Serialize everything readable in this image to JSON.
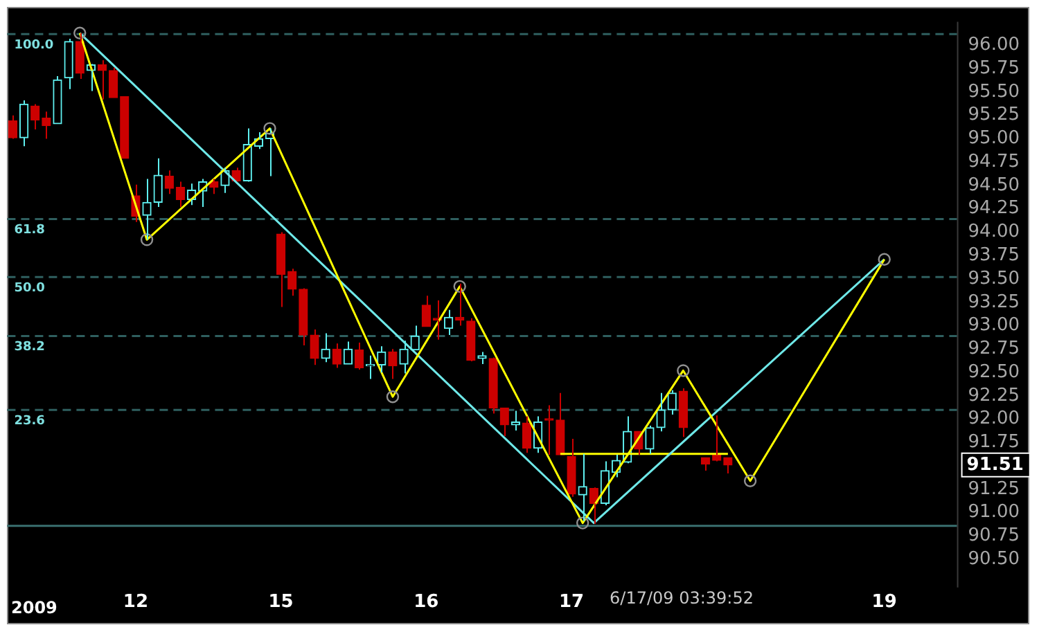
{
  "chart_data": {
    "type": "candlestick",
    "categories": [
      null,
      null,
      null,
      null,
      null,
      null,
      null,
      null,
      null,
      null,
      null,
      "12",
      null,
      null,
      null,
      null,
      null,
      null,
      null,
      null,
      null,
      null,
      null,
      null,
      "15",
      null,
      null,
      null,
      null,
      null,
      null,
      null,
      null,
      null,
      null,
      null,
      null,
      "16",
      null,
      null,
      null,
      null,
      null,
      null,
      null,
      null,
      null,
      null,
      null,
      null,
      "17",
      null,
      null,
      null,
      null,
      null,
      null,
      null,
      null,
      null,
      null,
      null,
      null,
      null,
      null,
      null,
      null,
      null,
      null,
      null,
      null,
      null,
      null,
      null,
      null,
      null,
      null,
      null,
      "19",
      null,
      null,
      null,
      null,
      null,
      null
    ],
    "ohlc": [
      [
        95.19,
        95.25,
        95.0,
        95.01
      ],
      [
        95.01,
        95.41,
        94.92,
        95.37
      ],
      [
        95.35,
        95.37,
        95.1,
        95.2
      ],
      [
        95.22,
        95.29,
        95.0,
        95.14
      ],
      [
        95.16,
        95.67,
        95.16,
        95.63
      ],
      [
        95.65,
        96.07,
        95.53,
        96.04
      ],
      [
        96.04,
        96.13,
        95.64,
        95.7
      ],
      [
        95.73,
        95.8,
        95.51,
        95.79
      ],
      [
        95.79,
        95.84,
        95.42,
        95.73
      ],
      [
        95.73,
        95.76,
        95.44,
        95.44
      ],
      [
        95.45,
        95.45,
        94.79,
        94.79
      ],
      [
        94.39,
        94.51,
        94.11,
        94.17
      ],
      [
        94.18,
        94.57,
        93.92,
        94.32
      ],
      [
        94.32,
        94.79,
        94.27,
        94.61
      ],
      [
        94.6,
        94.66,
        94.41,
        94.47
      ],
      [
        94.48,
        94.54,
        94.27,
        94.35
      ],
      [
        94.35,
        94.52,
        94.29,
        94.45
      ],
      [
        94.44,
        94.57,
        94.27,
        94.54
      ],
      [
        94.54,
        94.57,
        94.41,
        94.48
      ],
      [
        94.5,
        94.69,
        94.42,
        94.66
      ],
      [
        94.66,
        94.69,
        94.54,
        94.55
      ],
      [
        94.55,
        95.11,
        94.54,
        94.94
      ],
      [
        94.92,
        95.07,
        94.89,
        95.0
      ],
      [
        95.0,
        95.11,
        94.6,
        95.06
      ],
      [
        93.98,
        94.0,
        93.2,
        93.55
      ],
      [
        93.58,
        93.61,
        93.32,
        93.39
      ],
      [
        93.39,
        93.4,
        92.79,
        92.9
      ],
      [
        92.9,
        92.96,
        92.58,
        92.65
      ],
      [
        92.65,
        92.92,
        92.61,
        92.75
      ],
      [
        92.75,
        92.81,
        92.55,
        92.59
      ],
      [
        92.59,
        92.83,
        92.59,
        92.75
      ],
      [
        92.74,
        92.82,
        92.53,
        92.55
      ],
      [
        92.57,
        92.68,
        92.43,
        92.58
      ],
      [
        92.58,
        92.78,
        92.5,
        92.72
      ],
      [
        92.72,
        92.75,
        92.43,
        92.57
      ],
      [
        92.59,
        92.84,
        92.49,
        92.75
      ],
      [
        92.74,
        93.0,
        92.74,
        92.89
      ],
      [
        93.22,
        93.32,
        92.99,
        92.99
      ],
      [
        93.08,
        93.27,
        92.85,
        93.06
      ],
      [
        92.97,
        93.17,
        92.9,
        93.09
      ],
      [
        93.09,
        93.45,
        93.0,
        93.06
      ],
      [
        93.05,
        93.08,
        92.62,
        92.63
      ],
      [
        92.65,
        92.72,
        92.59,
        92.68
      ],
      [
        92.65,
        92.66,
        92.06,
        92.12
      ],
      [
        92.12,
        92.12,
        91.82,
        91.94
      ],
      [
        91.94,
        92.09,
        91.88,
        91.97
      ],
      [
        91.96,
        92.03,
        91.64,
        91.69
      ],
      [
        91.69,
        92.03,
        91.64,
        91.97
      ],
      [
        92.0,
        92.15,
        91.62,
        91.99
      ],
      [
        91.99,
        92.28,
        91.62,
        91.62
      ],
      [
        91.6,
        91.79,
        91.17,
        91.2
      ],
      [
        91.19,
        91.63,
        90.91,
        91.28
      ],
      [
        91.26,
        91.27,
        90.88,
        91.1
      ],
      [
        91.1,
        91.55,
        91.08,
        91.45
      ],
      [
        91.43,
        91.62,
        91.38,
        91.56
      ],
      [
        91.54,
        92.03,
        91.53,
        91.87
      ],
      [
        91.87,
        91.87,
        91.62,
        91.68
      ],
      [
        91.68,
        91.93,
        91.63,
        91.91
      ],
      [
        91.91,
        92.28,
        91.87,
        92.1
      ],
      [
        92.1,
        92.31,
        92.05,
        92.28
      ],
      [
        92.3,
        92.33,
        91.81,
        91.91
      ],
      null,
      [
        91.59,
        91.59,
        91.45,
        91.52
      ],
      [
        91.62,
        92.04,
        91.55,
        91.56
      ],
      [
        91.59,
        91.59,
        91.42,
        91.51
      ],
      null,
      null,
      null,
      null,
      null,
      null,
      null,
      null,
      null,
      null,
      null,
      null,
      null,
      null,
      null,
      null,
      null,
      null,
      null,
      null
    ],
    "series": [
      {
        "type": "line",
        "color": "#ffff00",
        "marker": "circle",
        "values": [
          null,
          null,
          null,
          null,
          null,
          null,
          96.13,
          null,
          null,
          null,
          null,
          null,
          93.92,
          null,
          null,
          null,
          null,
          null,
          null,
          null,
          null,
          null,
          null,
          95.11,
          null,
          null,
          null,
          null,
          null,
          null,
          null,
          null,
          null,
          null,
          92.24,
          null,
          null,
          null,
          null,
          null,
          93.42,
          null,
          null,
          null,
          null,
          null,
          null,
          null,
          null,
          null,
          null,
          90.89,
          null,
          null,
          null,
          null,
          null,
          null,
          null,
          null,
          92.52,
          null,
          null,
          null,
          null,
          null,
          91.34,
          null,
          null,
          null,
          null,
          null,
          null,
          null,
          null,
          null,
          null,
          null,
          93.71,
          null,
          null,
          null,
          null,
          null,
          null
        ]
      },
      {
        "type": "line",
        "color": "#6ee8e8",
        "values": [
          null,
          null,
          null,
          null,
          null,
          null,
          96.13,
          null,
          null,
          null,
          null,
          null,
          null,
          null,
          null,
          null,
          null,
          null,
          null,
          null,
          null,
          null,
          null,
          null,
          null,
          null,
          null,
          null,
          null,
          null,
          null,
          null,
          null,
          null,
          null,
          null,
          null,
          null,
          null,
          null,
          null,
          null,
          null,
          null,
          null,
          null,
          null,
          null,
          null,
          null,
          null,
          null,
          90.89,
          null,
          null,
          null,
          null,
          null,
          null,
          null,
          null,
          null,
          null,
          null,
          null,
          null,
          null,
          null,
          null,
          null,
          null,
          null,
          null,
          null,
          null,
          null,
          null,
          null,
          93.71,
          null,
          null,
          null,
          null,
          null,
          null
        ]
      },
      {
        "type": "line",
        "color": "#ffff00",
        "values": [
          null,
          null,
          null,
          null,
          null,
          null,
          null,
          null,
          null,
          null,
          null,
          null,
          null,
          null,
          null,
          null,
          null,
          null,
          null,
          null,
          null,
          null,
          null,
          null,
          null,
          null,
          null,
          null,
          null,
          null,
          null,
          null,
          null,
          null,
          null,
          null,
          null,
          null,
          null,
          null,
          null,
          null,
          null,
          null,
          null,
          null,
          null,
          null,
          null,
          91.63,
          null,
          null,
          null,
          null,
          null,
          null,
          null,
          null,
          null,
          null,
          null,
          null,
          null,
          null,
          91.63,
          null,
          null,
          null,
          null,
          null,
          null,
          null,
          null,
          null,
          null,
          null,
          null,
          null,
          null,
          null,
          null,
          null,
          null,
          null,
          null
        ]
      }
    ],
    "ref_lines": [
      {
        "axis": "y",
        "value": 96.12,
        "color": "#2f5f5f",
        "line_style": "dashed"
      },
      {
        "axis": "y",
        "value": 94.14,
        "color": "#2f5f5f",
        "line_style": "dashed"
      },
      {
        "axis": "y",
        "value": 93.52,
        "color": "#2f5f5f",
        "line_style": "dashed"
      },
      {
        "axis": "y",
        "value": 92.89,
        "color": "#2f5f5f",
        "line_style": "dashed"
      },
      {
        "axis": "y",
        "value": 92.1,
        "color": "#2f5f5f",
        "line_style": "dashed"
      },
      {
        "axis": "y",
        "value": 90.86,
        "color": "#3a7070",
        "line_style": "solid"
      }
    ],
    "annotations": [
      "2009",
      "6/17/09 03:39:52",
      "91.51",
      {
        "text": "100.0",
        "y": 96.12
      },
      {
        "text": "61.8",
        "y": 94.14
      },
      {
        "text": "50.0",
        "y": 93.52
      },
      {
        "text": "38.2",
        "y": 92.89
      },
      {
        "text": "23.6",
        "y": 92.1
      }
    ],
    "ylim": [
      90.2,
      96.25
    ],
    "yticks": [
      {
        "value": 90.5,
        "label": "90.50"
      },
      {
        "value": 90.75,
        "label": "90.75"
      },
      {
        "value": 91.0,
        "label": "91.00"
      },
      {
        "value": 91.25,
        "label": "91.25"
      },
      {
        "value": 91.75,
        "label": "91.75"
      },
      {
        "value": 92.0,
        "label": "92.00"
      },
      {
        "value": 92.25,
        "label": "92.25"
      },
      {
        "value": 92.5,
        "label": "92.50"
      },
      {
        "value": 92.75,
        "label": "92.75"
      },
      {
        "value": 93.0,
        "label": "93.00"
      },
      {
        "value": 93.25,
        "label": "93.25"
      },
      {
        "value": 93.5,
        "label": "93.50"
      },
      {
        "value": 93.75,
        "label": "93.75"
      },
      {
        "value": 94.0,
        "label": "94.00"
      },
      {
        "value": 94.25,
        "label": "94.25"
      },
      {
        "value": 94.5,
        "label": "94.50"
      },
      {
        "value": 94.75,
        "label": "94.75"
      },
      {
        "value": 95.0,
        "label": "95.00"
      },
      {
        "value": 95.25,
        "label": "95.25"
      },
      {
        "value": 95.5,
        "label": "95.50"
      },
      {
        "value": 95.75,
        "label": "95.75"
      },
      {
        "value": 96.0,
        "label": "96.00"
      }
    ],
    "grid": false,
    "legend": false
  }
}
